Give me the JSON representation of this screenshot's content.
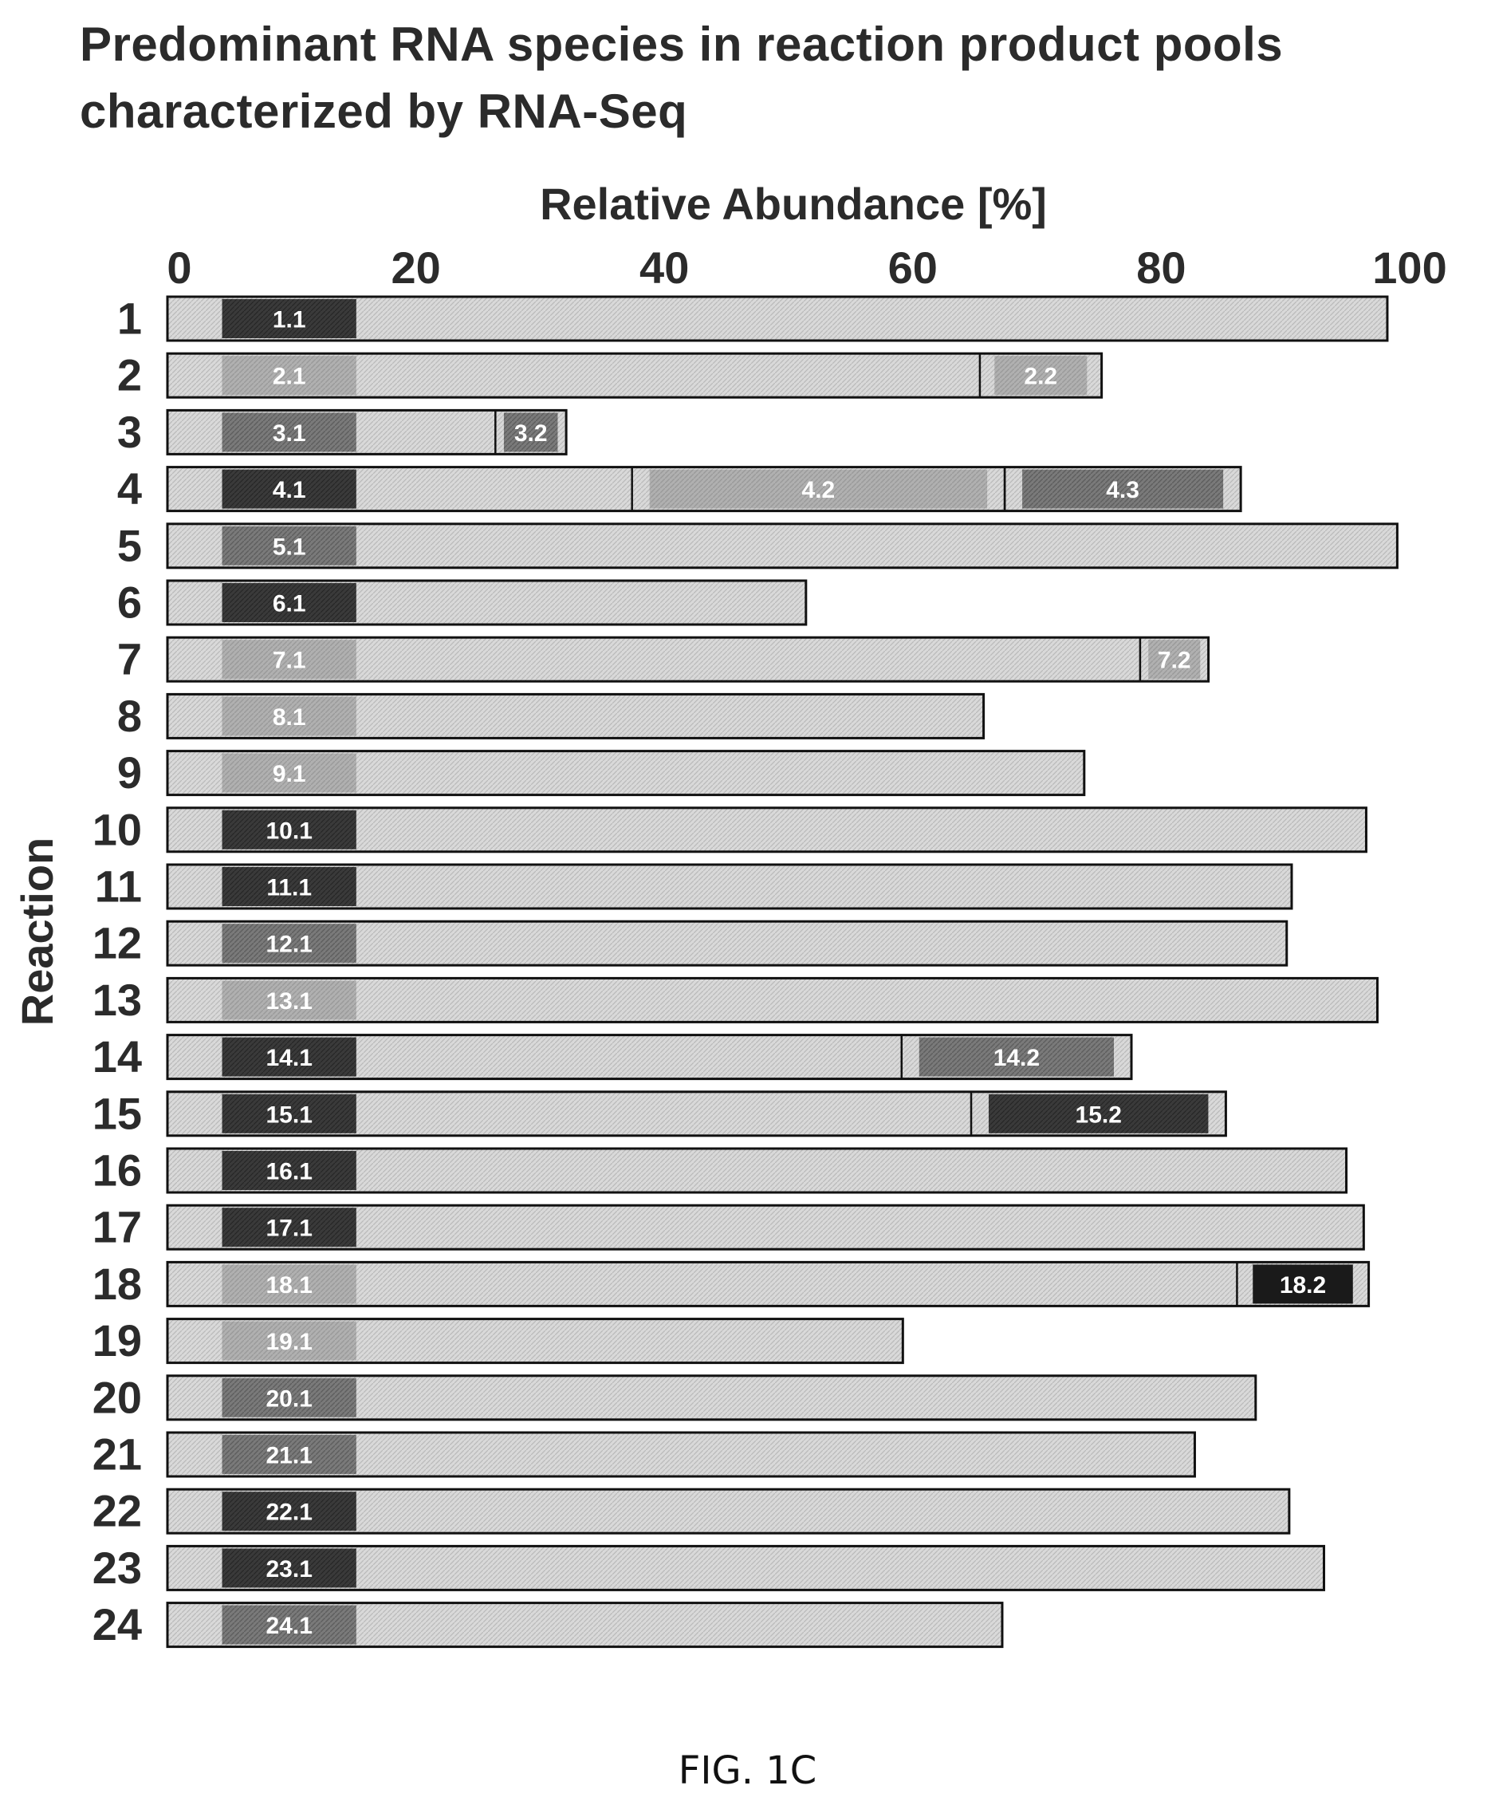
{
  "figure_caption": "FIG. 1C",
  "chart_data": {
    "type": "bar",
    "orientation": "horizontal",
    "stacked": true,
    "title": "Predominant RNA species in reaction product pools characterized by RNA-Seq",
    "xlabel": "Relative Abundance [%]",
    "ylabel": "Reaction",
    "xlim": [
      0,
      100
    ],
    "xticks": [
      "0",
      "20",
      "40",
      "60",
      "80",
      "100"
    ],
    "xaxis_position": "top",
    "grid": false,
    "legend": "none",
    "colors": {
      "bar_background": "#d9d9d9",
      "dark": "#3a3a3a",
      "medium": "#7a7a7a",
      "light": "#b0b0b0",
      "black": "#1a1a1a",
      "outline": "#111111"
    },
    "reactions": [
      {
        "label": "1",
        "total": 98.2,
        "species": [
          {
            "label": "1.1",
            "start": 4.4,
            "end": 15.2,
            "shade": "dark"
          }
        ]
      },
      {
        "label": "2",
        "total": 75.2,
        "species": [
          {
            "label": "2.1",
            "start": 4.4,
            "end": 15.2,
            "shade": "light"
          },
          {
            "label": "2.2",
            "start": 65.4,
            "end": 75.2,
            "shade": "light"
          }
        ]
      },
      {
        "label": "3",
        "total": 32.1,
        "species": [
          {
            "label": "3.1",
            "start": 4.4,
            "end": 15.2,
            "shade": "medium"
          },
          {
            "label": "3.2",
            "start": 26.4,
            "end": 32.1,
            "shade": "medium"
          }
        ]
      },
      {
        "label": "4",
        "total": 86.4,
        "species": [
          {
            "label": "4.1",
            "start": 4.4,
            "end": 15.2,
            "shade": "dark"
          },
          {
            "label": "4.2",
            "start": 37.4,
            "end": 67.4,
            "shade": "light"
          },
          {
            "label": "4.3",
            "start": 67.4,
            "end": 86.4,
            "shade": "medium"
          }
        ]
      },
      {
        "label": "5",
        "total": 99.0,
        "species": [
          {
            "label": "5.1",
            "start": 4.4,
            "end": 15.2,
            "shade": "medium"
          }
        ]
      },
      {
        "label": "6",
        "total": 51.4,
        "species": [
          {
            "label": "6.1",
            "start": 4.4,
            "end": 15.2,
            "shade": "dark"
          }
        ]
      },
      {
        "label": "7",
        "total": 83.8,
        "species": [
          {
            "label": "7.1",
            "start": 4.4,
            "end": 15.2,
            "shade": "light"
          },
          {
            "label": "7.2",
            "start": 78.3,
            "end": 83.8,
            "shade": "light"
          }
        ]
      },
      {
        "label": "8",
        "total": 65.7,
        "species": [
          {
            "label": "8.1",
            "start": 4.4,
            "end": 15.2,
            "shade": "light"
          }
        ]
      },
      {
        "label": "9",
        "total": 73.8,
        "species": [
          {
            "label": "9.1",
            "start": 4.4,
            "end": 15.2,
            "shade": "light"
          }
        ]
      },
      {
        "label": "10",
        "total": 96.5,
        "species": [
          {
            "label": "10.1",
            "start": 4.4,
            "end": 15.2,
            "shade": "dark"
          }
        ]
      },
      {
        "label": "11",
        "total": 90.5,
        "species": [
          {
            "label": "11.1",
            "start": 4.4,
            "end": 15.2,
            "shade": "dark"
          }
        ]
      },
      {
        "label": "12",
        "total": 90.1,
        "species": [
          {
            "label": "12.1",
            "start": 4.4,
            "end": 15.2,
            "shade": "medium"
          }
        ]
      },
      {
        "label": "13",
        "total": 97.4,
        "species": [
          {
            "label": "13.1",
            "start": 4.4,
            "end": 15.2,
            "shade": "light"
          }
        ]
      },
      {
        "label": "14",
        "total": 77.6,
        "species": [
          {
            "label": "14.1",
            "start": 4.4,
            "end": 15.2,
            "shade": "dark"
          },
          {
            "label": "14.2",
            "start": 59.1,
            "end": 77.6,
            "shade": "medium"
          }
        ]
      },
      {
        "label": "15",
        "total": 85.2,
        "species": [
          {
            "label": "15.1",
            "start": 4.4,
            "end": 15.2,
            "shade": "dark"
          },
          {
            "label": "15.2",
            "start": 64.7,
            "end": 85.2,
            "shade": "dark"
          }
        ]
      },
      {
        "label": "16",
        "total": 94.9,
        "species": [
          {
            "label": "16.1",
            "start": 4.4,
            "end": 15.2,
            "shade": "dark"
          }
        ]
      },
      {
        "label": "17",
        "total": 96.3,
        "species": [
          {
            "label": "17.1",
            "start": 4.4,
            "end": 15.2,
            "shade": "dark"
          }
        ]
      },
      {
        "label": "18",
        "total": 96.7,
        "species": [
          {
            "label": "18.1",
            "start": 4.4,
            "end": 15.2,
            "shade": "light"
          },
          {
            "label": "18.2",
            "start": 86.1,
            "end": 96.7,
            "shade": "black"
          }
        ]
      },
      {
        "label": "19",
        "total": 59.2,
        "species": [
          {
            "label": "19.1",
            "start": 4.4,
            "end": 15.2,
            "shade": "light"
          }
        ]
      },
      {
        "label": "20",
        "total": 87.6,
        "species": [
          {
            "label": "20.1",
            "start": 4.4,
            "end": 15.2,
            "shade": "medium"
          }
        ]
      },
      {
        "label": "21",
        "total": 82.7,
        "species": [
          {
            "label": "21.1",
            "start": 4.4,
            "end": 15.2,
            "shade": "medium"
          }
        ]
      },
      {
        "label": "22",
        "total": 90.3,
        "species": [
          {
            "label": "22.1",
            "start": 4.4,
            "end": 15.2,
            "shade": "dark"
          }
        ]
      },
      {
        "label": "23",
        "total": 93.1,
        "species": [
          {
            "label": "23.1",
            "start": 4.4,
            "end": 15.2,
            "shade": "dark"
          }
        ]
      },
      {
        "label": "24",
        "total": 67.2,
        "species": [
          {
            "label": "24.1",
            "start": 4.4,
            "end": 15.2,
            "shade": "medium"
          }
        ]
      }
    ]
  }
}
